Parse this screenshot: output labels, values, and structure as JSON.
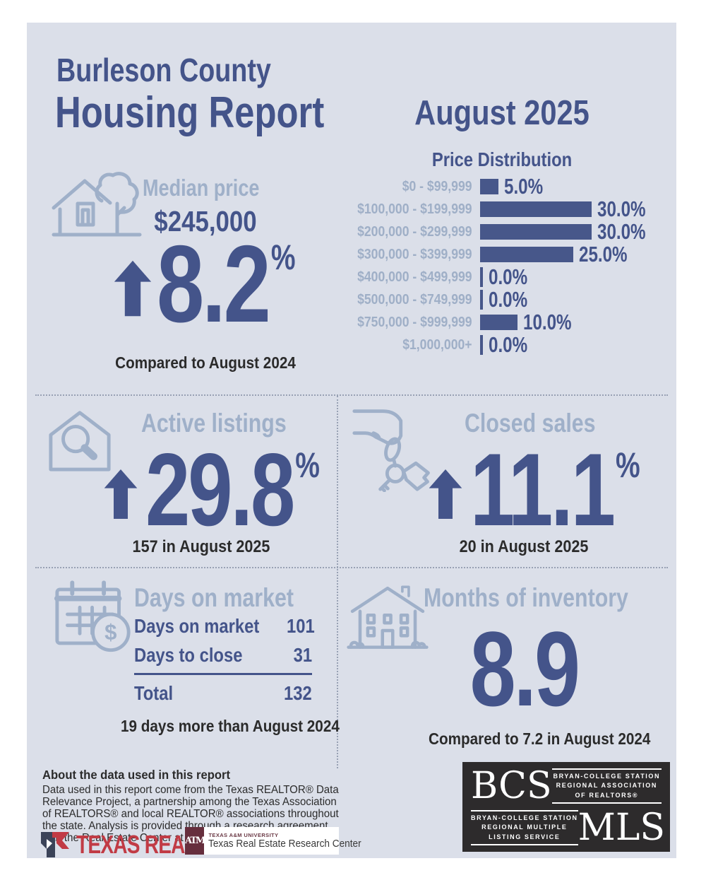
{
  "report": {
    "county": "Burleson County",
    "title": "Housing Report",
    "month": "August 2025"
  },
  "chart_data": {
    "type": "bar",
    "title": "Price Distribution",
    "orientation": "horizontal",
    "categories": [
      "$0 - $99,999",
      "$100,000 - $199,999",
      "$200,000 - $299,999",
      "$300,000 - $399,999",
      "$400,000 - $499,999",
      "$500,000 - $749,999",
      "$750,000 - $999,999",
      "$1,000,000+"
    ],
    "values": [
      5.0,
      30.0,
      30.0,
      25.0,
      0.0,
      0.0,
      10.0,
      0.0
    ],
    "value_labels": [
      "5.0%",
      "30.0%",
      "30.0%",
      "25.0%",
      "0.0%",
      "0.0%",
      "10.0%",
      "0.0%"
    ],
    "xlim": [
      0,
      30
    ],
    "legend": "none",
    "grid": false,
    "bar_color": "#47578a",
    "label_color": "#9fafc7"
  },
  "median_price": {
    "heading": "Median price",
    "value": "$245,000",
    "change": "8.2",
    "change_unit": "%",
    "direction": "up",
    "compare": "Compared to August 2024"
  },
  "active_listings": {
    "heading": "Active listings",
    "change": "29.8",
    "change_unit": "%",
    "direction": "up",
    "count_note": "157 in August 2025"
  },
  "closed_sales": {
    "heading": "Closed sales",
    "change": "11.1",
    "change_unit": "%",
    "direction": "up",
    "count_note": "20 in August 2025"
  },
  "days_on_market": {
    "heading": "Days on market",
    "rows": [
      {
        "label": "Days on market",
        "value": "101"
      },
      {
        "label": "Days to close",
        "value": "31"
      }
    ],
    "total_label": "Total",
    "total_value": "132",
    "compare": "19 days more than August 2024"
  },
  "months_of_inventory": {
    "heading": "Months of inventory",
    "value": "8.9",
    "compare": "Compared to 7.2 in August 2024"
  },
  "about": {
    "heading": "About the data used in this report",
    "body": "Data used in this report come from the Texas REALTOR® Data Relevance Project, a partnership among the Texas Association of REALTORS® and local REALTOR® associations throughout the state. Analysis is provided through a research agreement with the Real Estate Center at Texas A&M University."
  },
  "logos": {
    "texas_realtors": "TEXAS REALTORS",
    "texas_realtors_reg": "®",
    "tamu_monogram": "ATM",
    "tamu_university": "TEXAS A&M UNIVERSITY",
    "tamu_center": "Texas Real Estate Research Center",
    "bcs": "BCS",
    "bcs_lines": [
      "BRYAN-COLLEGE STATION",
      "REGIONAL ASSOCIATION",
      "OF REALTORS®"
    ],
    "mls": "MLS",
    "mls_lines": [
      "BRYAN-COLLEGE STATION",
      "REGIONAL MULTIPLE",
      "LISTING SERVICE"
    ]
  },
  "colors": {
    "panel_bg": "#dbdfe9",
    "navy": "#44548a",
    "steel": "#9fb0c9",
    "ink": "#2b2b2b",
    "realtor_red": "#c13b45",
    "tamu_maroon": "#662e3d",
    "bcs_black": "#2d2b2c"
  }
}
